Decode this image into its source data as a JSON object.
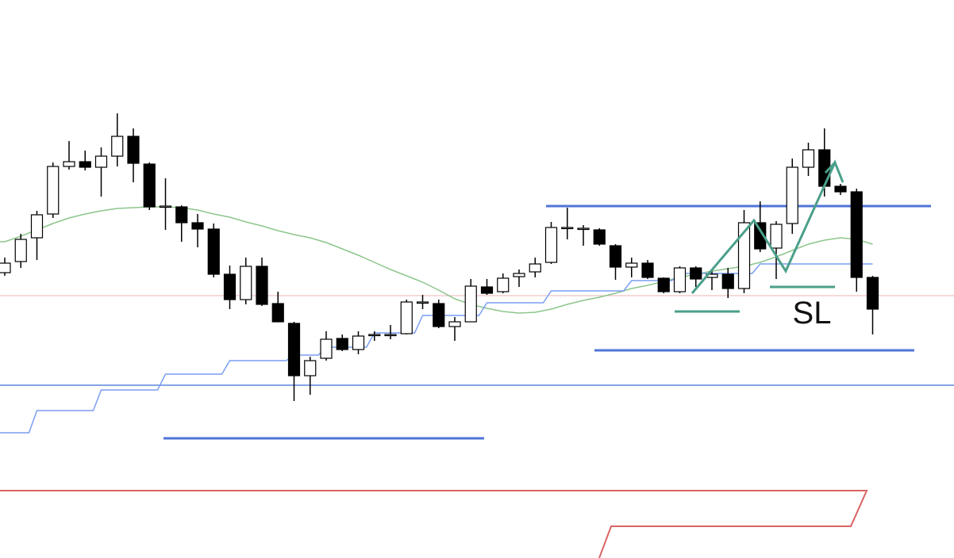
{
  "chart_data": {
    "type": "candlestick",
    "open": [
      360,
      374,
      404,
      434,
      494,
      500,
      493,
      507,
      532,
      497,
      444,
      443,
      423,
      415,
      358,
      326,
      368,
      321,
      296,
      230,
      252,
      277,
      263,
      282,
      282,
      283,
      323,
      321,
      292,
      298,
      342,
      336,
      355,
      361,
      373,
      417,
      416,
      414,
      394,
      367,
      372,
      353,
      336,
      366,
      354,
      358,
      340,
      423,
      391,
      422,
      493,
      515,
      469,
      462,
      354
    ],
    "high": [
      379,
      409,
      438,
      499,
      526,
      514,
      518,
      561,
      542,
      499,
      479,
      445,
      434,
      422,
      369,
      379,
      379,
      336,
      298,
      254,
      286,
      282,
      286,
      286,
      294,
      326,
      332,
      326,
      304,
      352,
      352,
      359,
      364,
      379,
      424,
      442,
      420,
      416,
      396,
      379,
      376,
      354,
      368,
      368,
      364,
      366,
      439,
      450,
      425,
      504,
      524,
      542,
      472,
      466,
      356
    ],
    "low": [
      356,
      366,
      376,
      429,
      490,
      489,
      456,
      494,
      474,
      439,
      414,
      399,
      392,
      354,
      314,
      320,
      318,
      298,
      198,
      206,
      249,
      261,
      257,
      274,
      276,
      282,
      314,
      290,
      274,
      298,
      332,
      334,
      342,
      354,
      371,
      402,
      394,
      394,
      351,
      354,
      352,
      334,
      334,
      342,
      338,
      328,
      334,
      386,
      352,
      409,
      482,
      456,
      458,
      336,
      282
    ],
    "close": [
      372,
      402,
      433,
      494,
      500,
      493,
      507,
      532,
      498,
      443,
      444,
      423,
      415,
      358,
      326,
      368,
      320,
      298,
      230,
      249,
      276,
      263,
      280,
      282,
      282,
      323,
      323,
      292,
      298,
      343,
      334,
      353,
      359,
      371,
      417,
      417,
      416,
      396,
      367,
      372,
      354,
      336,
      366,
      352,
      358,
      340,
      423,
      390,
      421,
      493,
      515,
      469,
      462,
      354,
      314
    ],
    "up_color": "#ffffff",
    "down_color": "#000000",
    "series": [
      {
        "color": "#8cc68c",
        "values": [
          399,
          406,
          414,
          422,
          429,
          434,
          438,
          441,
          442,
          443,
          443,
          442,
          439,
          434,
          430,
          424,
          419,
          413,
          408,
          404,
          398,
          390,
          382,
          373,
          364,
          356,
          348,
          338,
          327,
          320,
          315,
          311,
          309,
          310,
          314,
          320,
          325,
          329,
          334,
          340,
          344,
          349,
          354,
          358,
          362,
          365,
          368,
          373,
          380,
          388,
          396,
          401,
          404,
          402,
          396
        ]
      },
      {
        "color": "#7a9ef0",
        "step": true,
        "values": [
          158,
          158,
          186,
          186,
          186,
          186,
          212,
          212,
          212,
          212,
          232,
          232,
          232,
          232,
          249,
          249,
          249,
          249,
          256,
          256,
          266,
          266,
          266,
          284,
          284,
          284,
          306,
          306,
          306,
          306,
          322,
          322,
          322,
          322,
          337,
          337,
          337,
          337,
          337,
          350,
          350,
          350,
          359,
          359,
          359,
          359,
          359,
          371,
          371,
          371,
          371,
          371,
          371,
          371,
          371
        ]
      }
    ],
    "ylim": [
      0,
      704
    ],
    "annotation": "SL"
  }
}
